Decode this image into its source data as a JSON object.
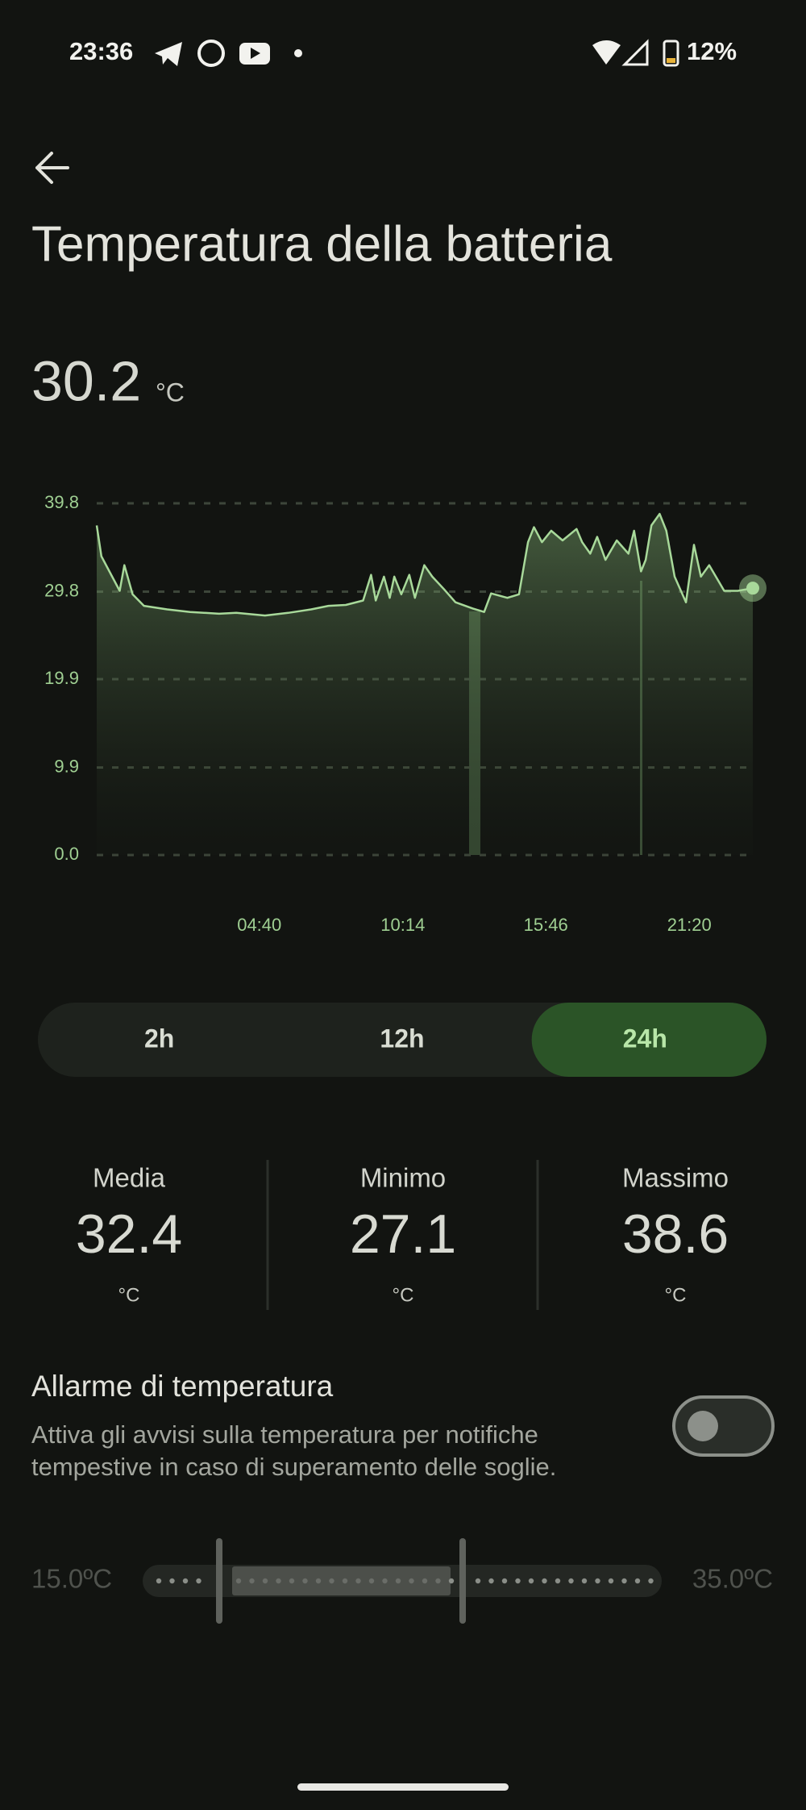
{
  "status_bar": {
    "time": "23:36",
    "battery": "12%"
  },
  "header": {
    "title": "Temperatura della batteria"
  },
  "current": {
    "value": 30.2,
    "unit": "°C"
  },
  "chart_data": {
    "type": "line",
    "color": "#a8d99a",
    "grid": true,
    "xlim": [
      -1.63,
      23.79
    ],
    "xticks": [
      {
        "value": 4.67,
        "label": "04:40"
      },
      {
        "value": 10.23,
        "label": "10:14"
      },
      {
        "value": 15.77,
        "label": "15:46"
      },
      {
        "value": 21.33,
        "label": "21:20"
      }
    ],
    "ylim": [
      0,
      39.8
    ],
    "yticks": [
      {
        "value": 0,
        "label": "0.0"
      },
      9.9,
      19.9,
      29.8,
      39.8
    ],
    "x": [
      -1.63,
      -1.45,
      -0.74,
      -0.56,
      -0.24,
      0.2,
      1.1,
      1.99,
      3.11,
      3.78,
      4.89,
      5.79,
      6.68,
      7.35,
      8.02,
      8.69,
      9.0,
      9.18,
      9.5,
      9.72,
      9.9,
      10.17,
      10.48,
      10.7,
      11.06,
      11.37,
      11.82,
      12.27,
      12.94,
      13.38,
      13.65,
      14.28,
      14.73,
      15.08,
      15.31,
      15.62,
      15.98,
      16.42,
      16.96,
      17.18,
      17.49,
      17.76,
      18.08,
      18.52,
      18.97,
      19.19,
      19.46,
      19.64,
      19.86,
      20.18,
      20.44,
      20.76,
      21.2,
      21.51,
      21.78,
      22.1,
      22.68,
      23.21,
      23.79
    ],
    "values": [
      37.3,
      33.8,
      29.9,
      32.8,
      29.5,
      28.2,
      27.8,
      27.5,
      27.3,
      27.4,
      27.1,
      27.4,
      27.8,
      28.2,
      28.3,
      28.8,
      31.7,
      28.8,
      31.5,
      29.1,
      31.5,
      29.5,
      31.7,
      29.1,
      32.8,
      31.5,
      30.1,
      28.6,
      27.9,
      27.5,
      29.6,
      29.1,
      29.5,
      35.4,
      37.1,
      35.4,
      36.7,
      35.6,
      36.9,
      35.4,
      34.1,
      36.0,
      33.4,
      35.6,
      34.1,
      36.7,
      32.1,
      33.4,
      37.3,
      38.6,
      36.7,
      31.5,
      28.6,
      35.1,
      31.5,
      32.8,
      29.9,
      29.9,
      30.2
    ]
  },
  "range_selector": {
    "options": [
      "2h",
      "12h",
      "24h"
    ],
    "selected": 2
  },
  "stats": [
    {
      "label": "Media",
      "value": 32.4,
      "unit": "°C"
    },
    {
      "label": "Minimo",
      "value": 27.1,
      "unit": "°C"
    },
    {
      "label": "Massimo",
      "value": 38.6,
      "unit": "°C"
    }
  ],
  "alarm": {
    "title": "Allarme di temperatura",
    "lines": [
      "Attiva gli avvisi sulla temperatura per notifiche",
      "tempestive in caso di superamento delle soglie."
    ],
    "enabled": false
  },
  "threshold": {
    "min_label": "15.0ºC",
    "max_label": "35.0ºC"
  }
}
